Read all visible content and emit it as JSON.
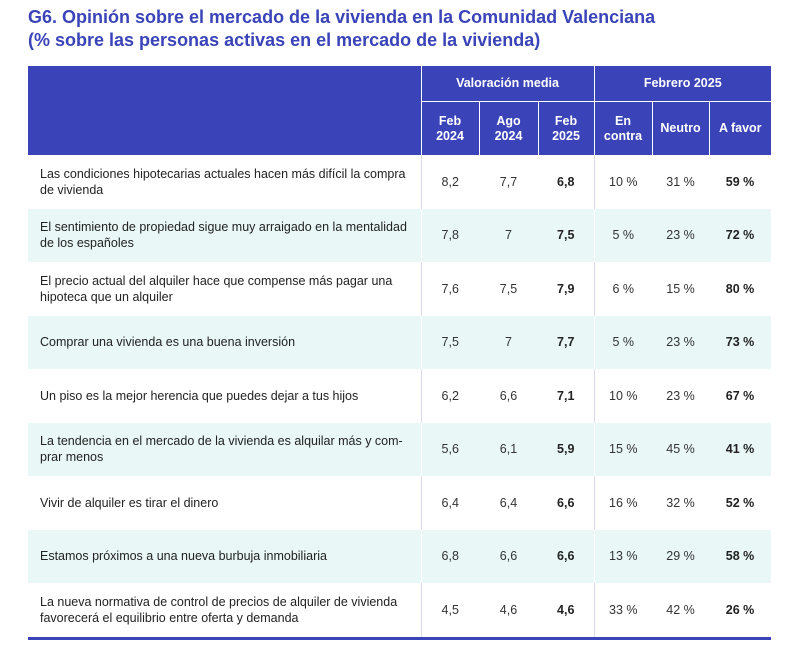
{
  "title": {
    "line1": "G6. Opinión sobre el mercado de la vivienda en la Comunidad Valenciana",
    "line2": "(% sobre las personas activas en el mercado de la vivienda)"
  },
  "header": {
    "group_valoracion": "Valoración media",
    "group_febrero": "Febrero 2025",
    "columns": [
      {
        "line1": "Feb",
        "line2": "2024"
      },
      {
        "line1": "Ago",
        "line2": "2024"
      },
      {
        "line1": "Feb",
        "line2": "2025"
      },
      {
        "line1": "En",
        "line2": "contra"
      },
      {
        "line1": "Neutro",
        "line2": ""
      },
      {
        "line1": "A favor",
        "line2": ""
      }
    ]
  },
  "rows": [
    {
      "label": "Las condiciones hipotecarias actuales hacen más difícil la compra de vivienda",
      "feb2024": "8,2",
      "ago2024": "7,7",
      "feb2025": "6,8",
      "en_contra": "10 %",
      "neutro": "31 %",
      "a_favor": "59 %"
    },
    {
      "label": "El sentimiento de propiedad sigue muy arraigado en la mentali­dad de los españoles",
      "feb2024": "7,8",
      "ago2024": "7",
      "feb2025": "7,5",
      "en_contra": "5 %",
      "neutro": "23 %",
      "a_favor": "72 %"
    },
    {
      "label": "El precio actual del alquiler hace que compense más pagar una hipoteca que un alquiler",
      "feb2024": "7,6",
      "ago2024": "7,5",
      "feb2025": "7,9",
      "en_contra": "6 %",
      "neutro": "15 %",
      "a_favor": "80 %"
    },
    {
      "label": "Comprar una vivienda es una buena inversión",
      "feb2024": "7,5",
      "ago2024": "7",
      "feb2025": "7,7",
      "en_contra": "5 %",
      "neutro": "23 %",
      "a_favor": "73 %"
    },
    {
      "label": "Un piso es la mejor herencia que puedes dejar a tus hijos",
      "feb2024": "6,2",
      "ago2024": "6,6",
      "feb2025": "7,1",
      "en_contra": "10 %",
      "neutro": "23 %",
      "a_favor": "67 %"
    },
    {
      "label": "La tendencia en el mercado de la vivienda es alquilar más y com­prar menos",
      "feb2024": "5,6",
      "ago2024": "6,1",
      "feb2025": "5,9",
      "en_contra": "15 %",
      "neutro": "45 %",
      "a_favor": "41 %"
    },
    {
      "label": "Vivir de alquiler es tirar el dinero",
      "feb2024": "6,4",
      "ago2024": "6,4",
      "feb2025": "6,6",
      "en_contra": "16 %",
      "neutro": "32 %",
      "a_favor": "52 %"
    },
    {
      "label": "Estamos próximos a una nueva burbuja inmobiliaria",
      "feb2024": "6,8",
      "ago2024": "6,6",
      "feb2025": "6,6",
      "en_contra": "13 %",
      "neutro": "29 %",
      "a_favor": "58 %"
    },
    {
      "label": "La nueva normativa de control de precios de alquiler de vivienda favorecerá el equilibrio entre oferta y demanda",
      "feb2024": "4,5",
      "ago2024": "4,6",
      "feb2025": "4,6",
      "en_contra": "33 %",
      "neutro": "42 %",
      "a_favor": "26 %"
    }
  ],
  "colors": {
    "accent": "#3a44b8",
    "row_alt": "#e9f7f7"
  }
}
